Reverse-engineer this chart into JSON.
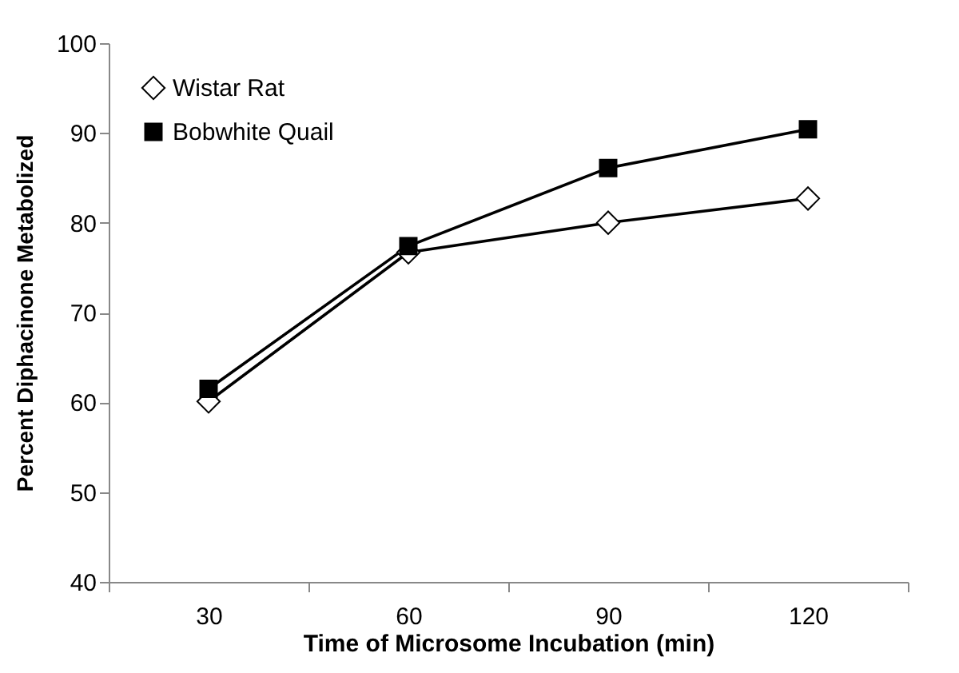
{
  "chart_data": {
    "type": "line",
    "xlabel": "Time of Microsome Incubation (min)",
    "ylabel": "Percent Diphacinone Metabolized",
    "categories": [
      "30",
      "60",
      "90",
      "120"
    ],
    "series": [
      {
        "name": "Wistar Rat",
        "color": "#000000",
        "marker": "diamond",
        "values": [
          60.1,
          76.7,
          80,
          82.7
        ]
      },
      {
        "name": "Bobwhite Quail",
        "color": "#000000",
        "marker": "square",
        "values": [
          61.5,
          77.4,
          86.1,
          90.4
        ]
      }
    ],
    "ylim": [
      40,
      100
    ],
    "yticks": [
      40,
      50,
      60,
      70,
      80,
      90,
      100
    ],
    "grid": false,
    "legend": "top left"
  }
}
